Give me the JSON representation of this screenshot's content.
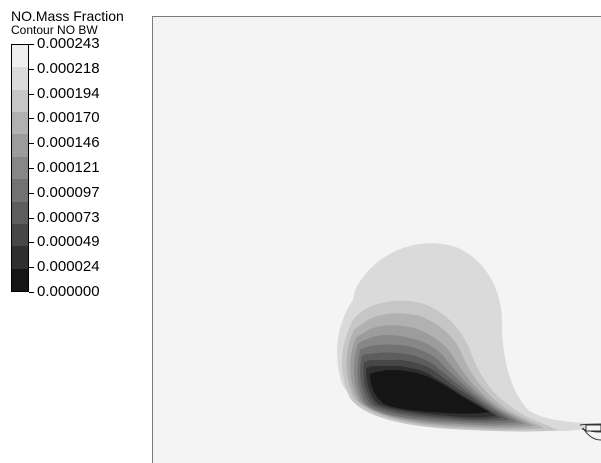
{
  "legend": {
    "title": "NO.Mass Fraction",
    "subtitle": "Contour NO BW",
    "levels": [
      "0.000243",
      "0.000218",
      "0.000194",
      "0.000170",
      "0.000146",
      "0.000121",
      "0.000097",
      "0.000073",
      "0.000049",
      "0.000024",
      "0.000000"
    ],
    "band_colors": [
      "#efefef",
      "#dadada",
      "#c6c6c6",
      "#b1b1b1",
      "#9c9c9c",
      "#878787",
      "#727272",
      "#5d5d5d",
      "#474747",
      "#2f2f2f",
      "#151515"
    ]
  },
  "plot": {
    "background_color": "#f4f4f4",
    "contour_colors": [
      "#dadada",
      "#c6c6c6",
      "#b1b1b1",
      "#9c9c9c",
      "#878787",
      "#727272",
      "#5d5d5d",
      "#474747",
      "#2f2f2f",
      "#151515"
    ]
  }
}
